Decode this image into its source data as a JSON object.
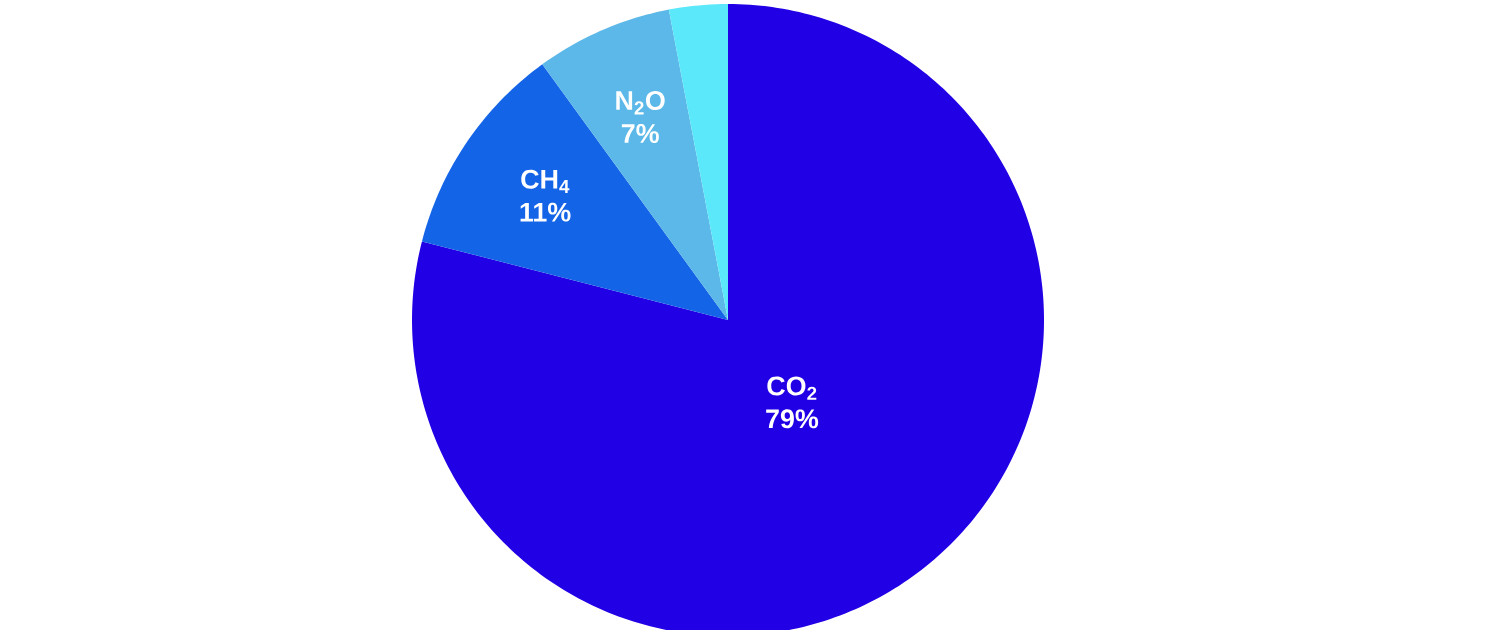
{
  "chart_data": {
    "type": "pie",
    "categories": [
      "CO$_{2}$",
      "CH$_{4}$",
      "N$_{2}$O",
      null
    ],
    "values": [
      79,
      11,
      7,
      3
    ],
    "value_labels": [
      "79%",
      "11%",
      "7%",
      null
    ],
    "colors": [
      "#2200e6",
      "#1464e8",
      "#5bb8e8",
      "#5ae8fa"
    ]
  }
}
